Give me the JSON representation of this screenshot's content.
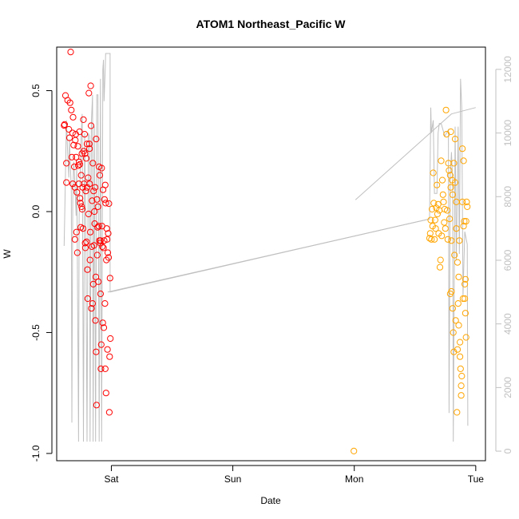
{
  "chart_data": {
    "type": "scatter",
    "title": "ATOM1 Northeast_Pacific W",
    "xlabel": "Date",
    "ylabel": "W",
    "y2label": "",
    "grid": false,
    "xlim": [
      -0.45,
      3.08
    ],
    "ylim": [
      -1.03,
      0.68
    ],
    "y2lim": [
      -300,
      12700
    ],
    "x_ticks": [
      {
        "value": 0,
        "label": "Sat"
      },
      {
        "value": 1,
        "label": "Sun"
      },
      {
        "value": 2,
        "label": "Mon"
      },
      {
        "value": 3,
        "label": "Tue"
      }
    ],
    "y_ticks": [
      {
        "value": -1.0,
        "label": "-1.0"
      },
      {
        "value": -0.5,
        "label": "-0.5"
      },
      {
        "value": 0.0,
        "label": "0.0"
      },
      {
        "value": 0.5,
        "label": "0.5"
      }
    ],
    "y2_ticks": [
      {
        "value": 0,
        "label": "0"
      },
      {
        "value": 2000,
        "label": "2000"
      },
      {
        "value": 4000,
        "label": "4000"
      },
      {
        "value": 6000,
        "label": "6000"
      },
      {
        "value": 8000,
        "label": "8000"
      },
      {
        "value": 10000,
        "label": "10000"
      },
      {
        "value": 12000,
        "label": "12000"
      }
    ],
    "colors": {
      "group1": "#ff0000",
      "group2": "#ffa500",
      "line": "#c0c0c0",
      "axis": "#000000",
      "axis2": "#c0c0c0"
    },
    "series": [
      {
        "color_key": "group1",
        "points": [
          [
            -0.389,
            0.356
          ],
          [
            -0.385,
            0.36
          ],
          [
            -0.378,
            0.48
          ],
          [
            -0.37,
            0.2
          ],
          [
            -0.37,
            0.12
          ],
          [
            -0.36,
            0.46
          ],
          [
            -0.35,
            0.34
          ],
          [
            -0.345,
            0.305
          ],
          [
            -0.34,
            0.45
          ],
          [
            -0.335,
            0.66
          ],
          [
            -0.33,
            0.42
          ],
          [
            -0.325,
            0.225
          ],
          [
            -0.32,
            0.325
          ],
          [
            -0.318,
            0.115
          ],
          [
            -0.315,
            0.39
          ],
          [
            -0.31,
            0.275
          ],
          [
            -0.305,
            0.185
          ],
          [
            -0.3,
            0.1
          ],
          [
            -0.297,
            0.295
          ],
          [
            -0.293,
            0.32
          ],
          [
            -0.29,
            0.225
          ],
          [
            -0.287,
            -0.085
          ],
          [
            -0.284,
            0.08
          ],
          [
            -0.28,
            -0.17
          ],
          [
            -0.276,
            0.27
          ],
          [
            -0.272,
            0.19
          ],
          [
            -0.268,
            0.115
          ],
          [
            -0.265,
            0.205
          ],
          [
            -0.262,
            0.33
          ],
          [
            -0.258,
            0.055
          ],
          [
            -0.255,
            0.035
          ],
          [
            -0.252,
            -0.065
          ],
          [
            -0.248,
            0.15
          ],
          [
            -0.245,
            0.02
          ],
          [
            -0.242,
            0.24
          ],
          [
            -0.24,
            0.01
          ],
          [
            -0.236,
            0.1
          ],
          [
            -0.233,
            -0.07
          ],
          [
            -0.23,
            0.38
          ],
          [
            -0.227,
            0.25
          ],
          [
            -0.224,
            0.115
          ],
          [
            -0.22,
            0.32
          ],
          [
            -0.217,
            0.24
          ],
          [
            -0.214,
            -0.15
          ],
          [
            -0.21,
            0.085
          ],
          [
            -0.207,
            0.22
          ],
          [
            -0.204,
            -0.125
          ],
          [
            -0.2,
            0.1
          ],
          [
            -0.197,
            -0.24
          ],
          [
            -0.194,
            -0.36
          ],
          [
            -0.191,
            0.14
          ],
          [
            -0.188,
            -0.01
          ],
          [
            -0.185,
            0.49
          ],
          [
            -0.182,
            0.28
          ],
          [
            -0.179,
            0.115
          ],
          [
            -0.176,
            -0.2
          ],
          [
            -0.173,
            -0.085
          ],
          [
            -0.17,
            0.52
          ],
          [
            -0.167,
            0.355
          ],
          [
            -0.164,
            -0.4
          ],
          [
            -0.161,
            -0.145
          ],
          [
            -0.158,
            0.045
          ],
          [
            -0.155,
            -0.38
          ],
          [
            -0.152,
            0.2
          ],
          [
            -0.149,
            -0.3
          ],
          [
            -0.146,
            0.085
          ],
          [
            -0.143,
            -0.14
          ],
          [
            -0.14,
            0.0
          ],
          [
            -0.137,
            -0.05
          ],
          [
            -0.134,
            0.1
          ],
          [
            -0.131,
            -0.45
          ],
          [
            -0.128,
            -0.27
          ],
          [
            -0.125,
            -0.58
          ],
          [
            -0.122,
            -0.8
          ],
          [
            -0.119,
            0.05
          ],
          [
            -0.116,
            -0.18
          ],
          [
            -0.113,
            -0.065
          ],
          [
            -0.11,
            0.02
          ],
          [
            -0.107,
            -0.29
          ],
          [
            -0.104,
            -0.06
          ],
          [
            -0.101,
            0.185
          ],
          [
            -0.098,
            -0.12
          ],
          [
            -0.095,
            0.15
          ],
          [
            -0.092,
            -0.13
          ],
          [
            -0.089,
            -0.34
          ],
          [
            -0.086,
            -0.65
          ],
          [
            -0.083,
            -0.55
          ],
          [
            -0.08,
            0.18
          ],
          [
            -0.077,
            -0.06
          ],
          [
            -0.074,
            -0.145
          ],
          [
            -0.071,
            -0.46
          ],
          [
            -0.068,
            0.09
          ],
          [
            -0.065,
            -0.15
          ],
          [
            -0.062,
            -0.48
          ],
          [
            -0.059,
            -0.12
          ],
          [
            -0.056,
            0.05
          ],
          [
            -0.053,
            -0.38
          ],
          [
            -0.05,
            -0.65
          ],
          [
            -0.047,
            0.035
          ],
          [
            -0.044,
            -0.75
          ],
          [
            -0.041,
            -0.2
          ],
          [
            -0.038,
            -0.07
          ],
          [
            -0.035,
            -0.115
          ],
          [
            -0.032,
            -0.57
          ],
          [
            -0.029,
            -0.17
          ],
          [
            -0.026,
            -0.09
          ],
          [
            -0.023,
            -0.19
          ],
          [
            -0.02,
            0.033
          ],
          [
            -0.017,
            -0.83
          ],
          [
            -0.014,
            -0.6
          ],
          [
            -0.011,
            -0.275
          ],
          [
            -0.008,
            -0.525
          ],
          [
            -0.3,
            -0.115
          ],
          [
            -0.26,
            0.195
          ],
          [
            -0.215,
            -0.13
          ],
          [
            -0.18,
            0.26
          ],
          [
            -0.125,
            0.3
          ],
          [
            -0.09,
            -0.12
          ],
          [
            -0.05,
            0.11
          ],
          [
            -0.2,
            0.28
          ]
        ]
      },
      {
        "color_key": "group2",
        "points": [
          [
            1.997,
            -0.99
          ],
          [
            2.62,
            -0.11
          ],
          [
            2.625,
            -0.09
          ],
          [
            2.63,
            -0.035
          ],
          [
            2.635,
            -0.115
          ],
          [
            2.64,
            0.01
          ],
          [
            2.645,
            -0.06
          ],
          [
            2.65,
            0.16
          ],
          [
            2.655,
            0.035
          ],
          [
            2.66,
            -0.115
          ],
          [
            2.665,
            -0.035
          ],
          [
            2.67,
            -0.07
          ],
          [
            2.675,
            0.015
          ],
          [
            2.68,
            0.11
          ],
          [
            2.685,
            -0.01
          ],
          [
            2.69,
            0.03
          ],
          [
            2.695,
            -0.09
          ],
          [
            2.7,
            0.005
          ],
          [
            2.705,
            -0.23
          ],
          [
            2.71,
            -0.2
          ],
          [
            2.715,
            0.21
          ],
          [
            2.72,
            -0.1
          ],
          [
            2.725,
            0.13
          ],
          [
            2.73,
            0.07
          ],
          [
            2.735,
            0.04
          ],
          [
            2.74,
            -0.045
          ],
          [
            2.745,
            0.01
          ],
          [
            2.75,
            -0.07
          ],
          [
            2.755,
            0.42
          ],
          [
            2.76,
            0.32
          ],
          [
            2.765,
            0.005
          ],
          [
            2.77,
            -0.115
          ],
          [
            2.775,
            0.2
          ],
          [
            2.78,
            0.17
          ],
          [
            2.785,
            -0.03
          ],
          [
            2.79,
            -0.34
          ],
          [
            2.795,
            0.1
          ],
          [
            2.8,
            -0.33
          ],
          [
            2.805,
            0.13
          ],
          [
            2.81,
            -0.4
          ],
          [
            2.815,
            -0.5
          ],
          [
            2.82,
            -0.58
          ],
          [
            2.825,
            -0.18
          ],
          [
            2.83,
            0.3
          ],
          [
            2.835,
            -0.45
          ],
          [
            2.84,
            0.04
          ],
          [
            2.845,
            -0.83
          ],
          [
            2.85,
            -0.57
          ],
          [
            2.855,
            -0.38
          ],
          [
            2.86,
            -0.27
          ],
          [
            2.865,
            -0.12
          ],
          [
            2.87,
            -0.54
          ],
          [
            2.875,
            -0.65
          ],
          [
            2.88,
            -0.76
          ],
          [
            2.885,
            -0.68
          ],
          [
            2.89,
            0.04
          ],
          [
            2.895,
            -0.36
          ],
          [
            2.9,
            -0.06
          ],
          [
            2.905,
            -0.04
          ],
          [
            2.91,
            -0.3
          ],
          [
            2.915,
            -0.42
          ],
          [
            2.92,
            -0.52
          ],
          [
            2.925,
            0.04
          ],
          [
            2.93,
            0.02
          ],
          [
            2.79,
            0.15
          ],
          [
            2.795,
            0.33
          ],
          [
            2.8,
            -0.12
          ],
          [
            2.81,
            0.07
          ],
          [
            2.82,
            0.2
          ],
          [
            2.83,
            0.12
          ],
          [
            2.84,
            -0.07
          ],
          [
            2.85,
            -0.21
          ],
          [
            2.86,
            -0.47
          ],
          [
            2.87,
            -0.6
          ],
          [
            2.88,
            -0.72
          ],
          [
            2.89,
            0.26
          ],
          [
            2.9,
            0.21
          ],
          [
            2.91,
            -0.36
          ],
          [
            2.92,
            -0.04
          ],
          [
            2.915,
            -0.28
          ]
        ]
      }
    ],
    "line_series": {
      "color_key": "line",
      "axis": "y2",
      "points": [
        [
          -0.389,
          6450
        ],
        [
          -0.385,
          7200
        ],
        [
          -0.37,
          10400
        ],
        [
          -0.36,
          9400
        ],
        [
          -0.35,
          8600
        ],
        [
          -0.345,
          9800
        ],
        [
          -0.34,
          9300
        ],
        [
          -0.33,
          8200
        ],
        [
          -0.325,
          900
        ],
        [
          -0.318,
          7900
        ],
        [
          -0.31,
          9100
        ],
        [
          -0.3,
          8400
        ],
        [
          -0.29,
          7400
        ],
        [
          -0.285,
          9000
        ],
        [
          -0.27,
          300
        ],
        [
          -0.265,
          7400
        ],
        [
          -0.25,
          9700
        ],
        [
          -0.24,
          10600
        ],
        [
          -0.23,
          300
        ],
        [
          -0.22,
          10000
        ],
        [
          -0.21,
          6800
        ],
        [
          -0.2,
          300
        ],
        [
          -0.19,
          10000
        ],
        [
          -0.18,
          9900
        ],
        [
          -0.175,
          300
        ],
        [
          -0.165,
          10300
        ],
        [
          -0.155,
          11200
        ],
        [
          -0.15,
          300
        ],
        [
          -0.14,
          10200
        ],
        [
          -0.13,
          300
        ],
        [
          -0.12,
          11200
        ],
        [
          -0.11,
          11200
        ],
        [
          -0.1,
          300
        ],
        [
          -0.09,
          11700
        ],
        [
          -0.08,
          300
        ],
        [
          -0.07,
          12000
        ],
        [
          -0.065,
          12300
        ],
        [
          -0.06,
          11000
        ],
        [
          -0.05,
          12000
        ],
        [
          -0.047,
          12500
        ],
        [
          -0.01,
          12500
        ],
        [
          -0.01,
          5000
        ],
        [
          2.62,
          7300
        ],
        [
          2.63,
          10800
        ],
        [
          2.635,
          10000
        ],
        [
          2.65,
          10400
        ],
        [
          2.66,
          8100
        ],
        [
          2.68,
          8100
        ],
        [
          2.69,
          10000
        ],
        [
          2.7,
          10300
        ],
        [
          2.715,
          10300
        ],
        [
          2.73,
          10100
        ],
        [
          2.745,
          9900
        ],
        [
          2.76,
          10000
        ],
        [
          2.775,
          10100
        ],
        [
          2.78,
          1200
        ],
        [
          2.79,
          8600
        ],
        [
          2.8,
          9400
        ],
        [
          2.81,
          8500
        ],
        [
          2.815,
          300
        ],
        [
          2.83,
          10200
        ],
        [
          2.84,
          6000
        ],
        [
          2.855,
          10200
        ],
        [
          2.865,
          6200
        ],
        [
          2.875,
          11700
        ],
        [
          2.885,
          10800
        ],
        [
          2.895,
          4900
        ],
        [
          2.91,
          6900
        ],
        [
          2.93,
          6500
        ],
        [
          2.935,
          800
        ]
      ],
      "segments": [
        [
          [
            -0.03,
            5000
          ],
          [
            2.62,
            7300
          ]
        ],
        [
          [
            2.01,
            7900
          ],
          [
            2.8,
            10600
          ],
          [
            3.0,
            10800
          ]
        ]
      ]
    }
  }
}
